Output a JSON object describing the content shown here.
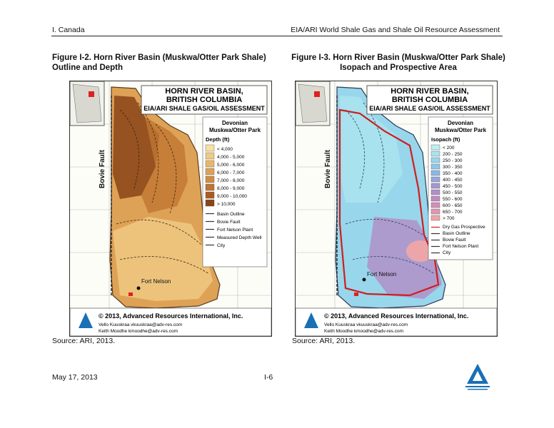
{
  "header": {
    "left": "I. Canada",
    "right": "EIA/ARI World Shale Gas and Shale Oil Resource Assessment"
  },
  "figures": [
    {
      "title": "Figure I-2.  Horn River Basin (Muskwa/Otter Park Shale) Outline and Depth",
      "source": "Source: ARI, 2013.",
      "map_title_lines": [
        "HORN RIVER BASIN,",
        "BRITISH COLUMBIA",
        "EIA/ARI SHALE GAS/OIL ASSESSMENT"
      ],
      "formation": [
        "Devonian",
        "Muskwa/Otter Park"
      ],
      "legend_heading": "Depth (ft)",
      "legend_items": [
        "< 4,000",
        "4,000 - 5,000",
        "5,000 - 6,000",
        "6,000 - 7,000",
        "7,000 - 8,000",
        "8,000 - 9,000",
        "9,000 - 10,000",
        "> 10,000"
      ],
      "legend_colors": [
        "#f7dfa6",
        "#f0c982",
        "#e8b66a",
        "#dea256",
        "#d08e44",
        "#bf7632",
        "#a85c22",
        "#8a4418"
      ],
      "legend_extra": [
        "Basin Outline",
        "Bovie Fault",
        "Fort Nelson Plant",
        "Measured Depth Well",
        "City"
      ],
      "fault_label": "Bovie Fault",
      "city_label": "Fort Nelson",
      "copyright": "© 2013, Advanced Resources International, Inc.",
      "contacts": [
        "Vello Kuuskraa  vkuuskraa@adv-res.com",
        "Keith Moodhe  kmoodhe@adv-res.com"
      ]
    },
    {
      "title": "Figure I-3.  Horn River Basin (Muskwa/Otter Park Shale)  Isopach and Prospective Area",
      "source": "Source: ARI, 2013.",
      "map_title_lines": [
        "HORN RIVER BASIN,",
        "BRITISH COLUMBIA",
        "EIA/ARI SHALE GAS/OIL ASSESSMENT"
      ],
      "formation": [
        "Devonian",
        "Muskwa/Otter Park"
      ],
      "legend_heading": "Isopach (ft)",
      "legend_items": [
        "< 200",
        "200 - 250",
        "250 - 300",
        "300 - 350",
        "350 - 400",
        "400 - 450",
        "450 - 500",
        "500 - 550",
        "550 - 600",
        "600 - 650",
        "650 - 700",
        "> 700"
      ],
      "legend_colors": [
        "#bfeef0",
        "#a9e3ee",
        "#98d6ec",
        "#8ec6ea",
        "#8fb6e4",
        "#98a6dc",
        "#a498d2",
        "#b090c8",
        "#c08cc0",
        "#d090b8",
        "#df98b0",
        "#eca6aa"
      ],
      "legend_extra": [
        "Dry Gas Prospective",
        "Basin Outline",
        "Bovie Fault",
        "Fort Nelson Plant",
        "City"
      ],
      "fault_label": "Bovie Fault",
      "city_label": "Fort Nelson",
      "copyright": "© 2013, Advanced Resources International, Inc.",
      "contacts": [
        "Vello Kuuskraa  vkuuskraa@adv-res.com",
        "Keith Moodhe  kmoodhe@adv-res.com"
      ]
    }
  ],
  "footer": {
    "date": "May 17, 2013",
    "page": "I-6"
  }
}
